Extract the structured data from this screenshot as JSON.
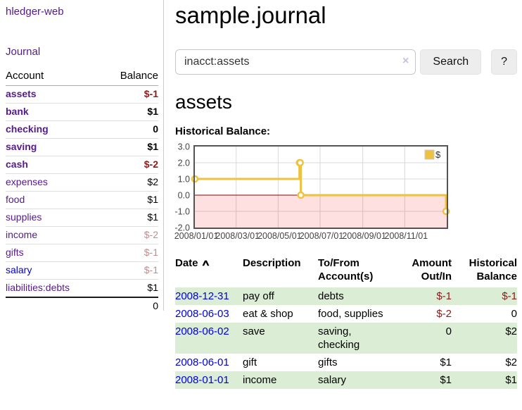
{
  "colors": {
    "link_purple": "#551a8b",
    "link_blue": "#0000dd",
    "negative_strong": "#8b1a1a",
    "negative_soft": "#bd8e8e",
    "row_green": "#dcedd5",
    "chart_line": "#edc240",
    "chart_zero_line": "#8b0000",
    "chart_negative_region": "rgba(255,0,0,0.12)"
  },
  "app_title": "hledger-web",
  "sidebar": {
    "journal_link": "Journal",
    "accounts": {
      "headers": {
        "account": "Account",
        "balance": "Balance"
      },
      "rows": [
        {
          "name": "assets",
          "balance": "$-1",
          "level": 1,
          "bold": true,
          "neg": "strong"
        },
        {
          "name": "bank",
          "balance": "$1",
          "level": 2,
          "bold": true
        },
        {
          "name": "checking",
          "balance": "0",
          "level": 3,
          "bold": true
        },
        {
          "name": "saving",
          "balance": "$1",
          "level": 3,
          "bold": true
        },
        {
          "name": "cash",
          "balance": "$-2",
          "level": 2,
          "bold": true,
          "neg": "strong"
        },
        {
          "name": "expenses",
          "balance": "$2",
          "level": 1
        },
        {
          "name": "food",
          "balance": "$1",
          "level": 2
        },
        {
          "name": "supplies",
          "balance": "$1",
          "level": 2
        },
        {
          "name": "income",
          "balance": "$-2",
          "level": 1,
          "neg": "soft"
        },
        {
          "name": "gifts",
          "balance": "$-1",
          "level": 2,
          "neg": "soft"
        },
        {
          "name": "salary",
          "balance": "$-1",
          "level": 2,
          "neg": "soft",
          "blue": true
        },
        {
          "name": "liabilities:debts",
          "balance": "$1",
          "level": 1
        }
      ],
      "total": "0"
    }
  },
  "main": {
    "title": "sample.journal",
    "search": {
      "value": "inacct:assets",
      "clear_icon": "×",
      "search_button": "Search",
      "help_button": "?"
    },
    "account_heading": "assets",
    "chart_heading": "Historical Balance:"
  },
  "chart_data": {
    "type": "line",
    "step": true,
    "title": "Historical Balance",
    "series": [
      {
        "name": "$",
        "points": [
          [
            "2008-01-01",
            1
          ],
          [
            "2008-06-01",
            2
          ],
          [
            "2008-06-02",
            2
          ],
          [
            "2008-06-03",
            0
          ],
          [
            "2008-12-31",
            -1
          ]
        ]
      }
    ],
    "legend": [
      {
        "label": "$",
        "color": "#edc240"
      }
    ],
    "legend_position": "top-right",
    "ylim": [
      -2,
      3
    ],
    "x_range": [
      "2008-01-01",
      "2009-01-01"
    ],
    "y_ticks": [
      3,
      2,
      1,
      0,
      -1,
      -2
    ],
    "y_tick_labels": [
      "3.0",
      "2.0",
      "1.0",
      "0.0",
      "-1.0",
      "-2.0"
    ],
    "x_ticks": [
      "2008-01-01",
      "2008-03-01",
      "2008-05-01",
      "2008-07-01",
      "2008-09-01",
      "2008-11-01"
    ],
    "x_tick_labels": [
      "2008/01/01",
      "2008/03/01",
      "2008/05/01",
      "2008/07/01",
      "2008/09/01",
      "2008/11/01"
    ],
    "grid": true,
    "negative_region": true
  },
  "register": {
    "headers": {
      "date": "Date",
      "sort_icon": "∧",
      "description": "Description",
      "accounts": "To/From Account(s)",
      "amount": "Amount Out/In",
      "balance": "Historical Balance"
    },
    "rows": [
      {
        "date": "2008-12-31",
        "description": "pay off",
        "accounts": "debts",
        "amount": "$-1",
        "balance": "$-1"
      },
      {
        "date": "2008-06-03",
        "description": "eat & shop",
        "accounts": "food, supplies",
        "amount": "$-2",
        "balance": "0"
      },
      {
        "date": "2008-06-02",
        "description": "save",
        "accounts": "saving, checking",
        "amount": "0",
        "balance": "$2"
      },
      {
        "date": "2008-06-01",
        "description": "gift",
        "accounts": "gifts",
        "amount": "$1",
        "balance": "$2"
      },
      {
        "date": "2008-01-01",
        "description": "income",
        "accounts": "salary",
        "amount": "$1",
        "balance": "$1"
      }
    ]
  }
}
